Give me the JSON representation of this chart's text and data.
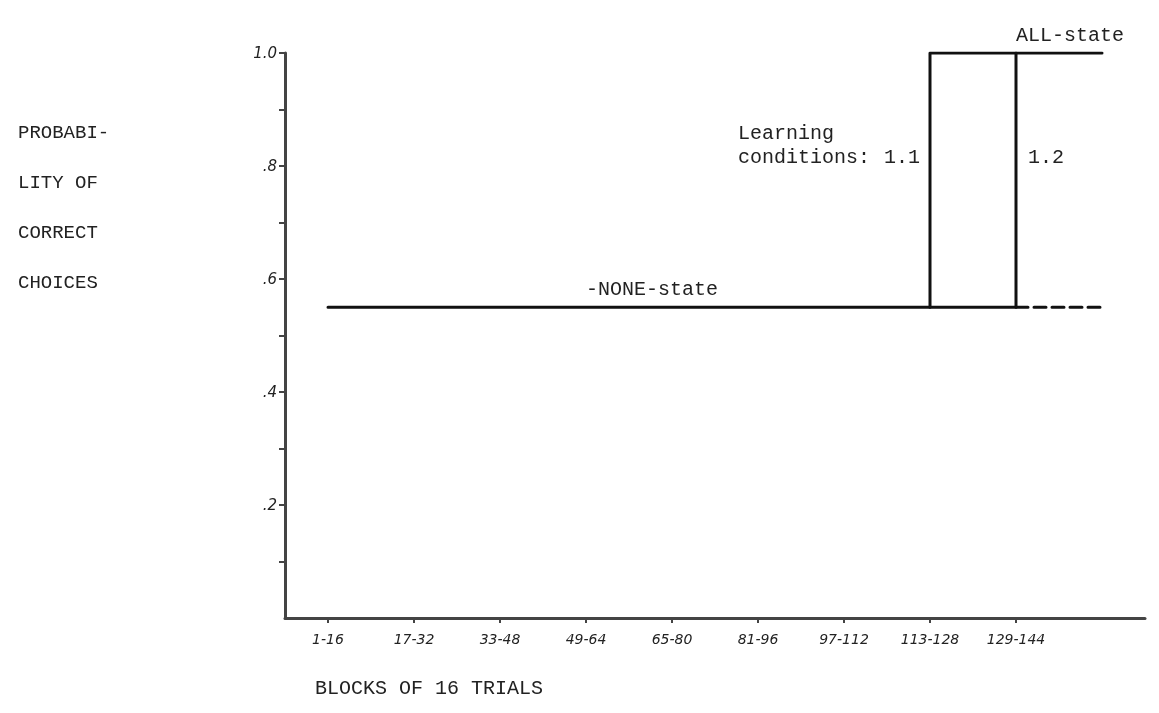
{
  "chart_data": {
    "type": "step",
    "xlabel": "BLOCKS OF 16 TRIALS",
    "ylabel": "PROBABI-\nLITY OF\nCORRECT\nCHOICES",
    "categories": [
      "1-16",
      "17-32",
      "33-48",
      "49-64",
      "65-80",
      "81-96",
      "97-112",
      "113-128",
      "129-144",
      null
    ],
    "series": [
      {
        "name": "1.1",
        "color": "#111111",
        "values": [
          0.55,
          0.55,
          0.55,
          0.55,
          0.55,
          0.55,
          0.55,
          1.0,
          1.0,
          null
        ]
      },
      {
        "name": "1.2",
        "color": "#111111",
        "values": [
          null,
          null,
          null,
          null,
          null,
          null,
          null,
          0.55,
          1.0,
          1.0
        ]
      },
      {
        "color": "#111111",
        "line_style": "dashed",
        "values": [
          null,
          null,
          null,
          null,
          null,
          null,
          null,
          null,
          0.55,
          0.55
        ]
      }
    ],
    "ylim": [
      0,
      1
    ],
    "yticks": [
      {
        "value": 0.1,
        "label": null
      },
      {
        "value": 0.2,
        "label": ".2"
      },
      {
        "value": 0.3,
        "label": null
      },
      {
        "value": 0.4,
        "label": ".4"
      },
      {
        "value": 0.5,
        "label": null
      },
      {
        "value": 0.6,
        "label": ".6"
      },
      {
        "value": 0.7,
        "label": null
      },
      {
        "value": 0.8,
        "label": ".8"
      },
      {
        "value": 0.9,
        "label": null
      },
      {
        "value": 1.0,
        "label": "1.0"
      }
    ],
    "annotations": [
      "Learning conditions:",
      {
        "text": "-NONE-state",
        "x": "49-64",
        "y": 0.55
      },
      {
        "text": "ALL-state",
        "x": "129-144",
        "y": 1.0
      }
    ],
    "grid": false,
    "legend": false,
    "marker": "none",
    "line_style": "solid"
  }
}
